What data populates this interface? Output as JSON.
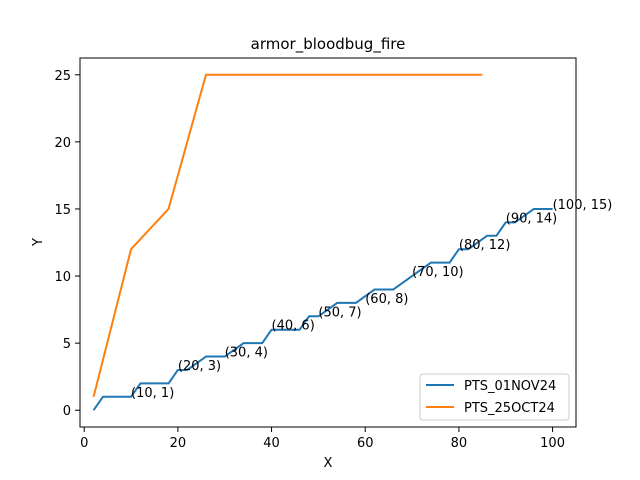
{
  "chart_data": {
    "type": "line",
    "title": "armor_bloodbug_fire",
    "xlabel": "X",
    "ylabel": "Y",
    "xlim": [
      -0.9,
      105.0
    ],
    "ylim": [
      -1.25,
      26.25
    ],
    "xticks": [
      0,
      20,
      40,
      60,
      80,
      100
    ],
    "yticks": [
      0,
      5,
      10,
      15,
      20,
      25
    ],
    "grid": false,
    "legend_position": "lower-right",
    "series": [
      {
        "name": "PTS_01NOV24",
        "color": "#1f77b4",
        "x": [
          2,
          4,
          10,
          12,
          18,
          20,
          22,
          26,
          30,
          34,
          38,
          40,
          42,
          46,
          48,
          50,
          54,
          58,
          62,
          66,
          70,
          74,
          78,
          80,
          82,
          86,
          88,
          90,
          92,
          96,
          100
        ],
        "y": [
          0,
          1,
          1,
          2,
          2,
          3,
          3,
          4,
          4,
          5,
          5,
          6,
          6,
          6,
          7,
          7,
          8,
          8,
          9,
          9,
          10,
          11,
          11,
          12,
          12,
          13,
          13,
          14,
          14,
          15,
          15
        ]
      },
      {
        "name": "PTS_25OCT24",
        "color": "#ff7f0e",
        "x": [
          2,
          10,
          18,
          26,
          85
        ],
        "y": [
          1,
          12,
          15,
          25,
          25
        ]
      }
    ],
    "annotations": [
      {
        "text": "(10, 1)",
        "x": 10,
        "y": 1
      },
      {
        "text": "(20, 3)",
        "x": 20,
        "y": 3
      },
      {
        "text": "(30, 4)",
        "x": 30,
        "y": 4
      },
      {
        "text": "(40, 6)",
        "x": 40,
        "y": 6
      },
      {
        "text": "(50, 7)",
        "x": 50,
        "y": 7
      },
      {
        "text": "(60, 8)",
        "x": 60,
        "y": 8
      },
      {
        "text": "(70, 10)",
        "x": 70,
        "y": 10
      },
      {
        "text": "(80, 12)",
        "x": 80,
        "y": 12
      },
      {
        "text": "(90, 14)",
        "x": 90,
        "y": 14
      },
      {
        "text": "(100, 15)",
        "x": 100,
        "y": 15
      }
    ]
  }
}
